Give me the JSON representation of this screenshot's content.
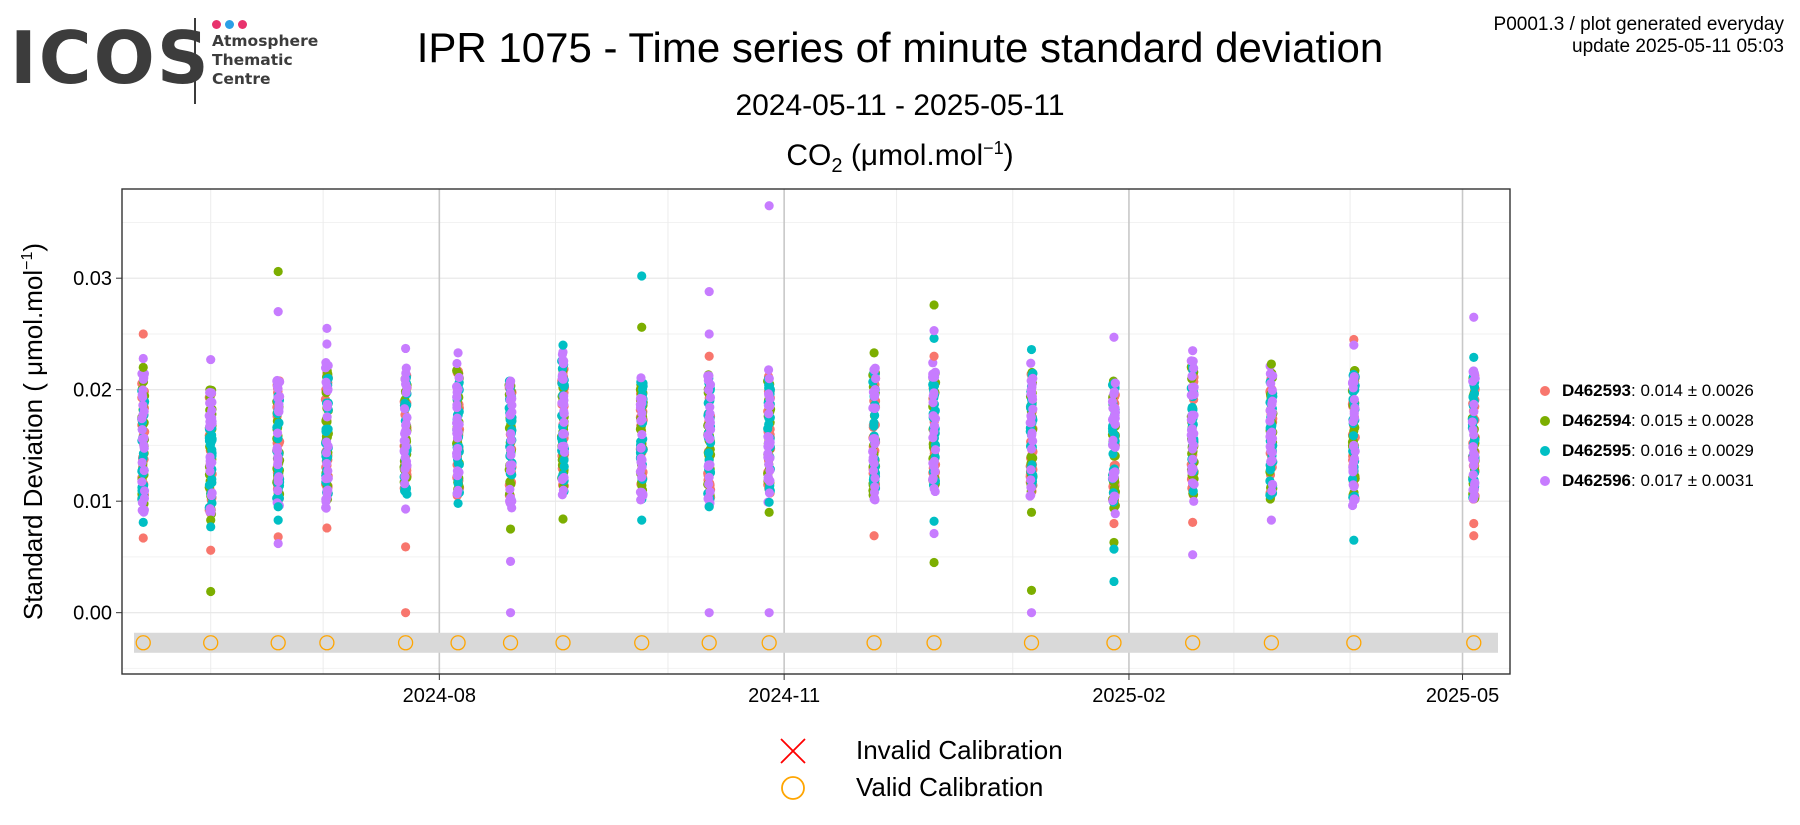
{
  "logo": {
    "word": "ICOS",
    "lines": [
      "Atmosphere",
      "Thematic",
      "Centre"
    ],
    "dot_colors": [
      "#e8336d",
      "#2b9fe6",
      "#e8336d"
    ]
  },
  "header": {
    "title": "IPR 1075 - Time series of minute standard deviation",
    "subtitle": "2024-05-11 - 2025-05-11",
    "plot_title_prefix": "CO",
    "plot_title_sub": "2",
    "plot_title_unit": " (μmol.mol",
    "plot_title_sup": "−1",
    "plot_title_close": ")",
    "info_line1": "P0001.3 / plot generated everyday",
    "info_line2": "update  2025-05-11 05:03"
  },
  "chart_data": {
    "type": "scatter",
    "title": "CO2 (μmol.mol−1)",
    "xlabel": "",
    "ylabel": "Standard Deviation ( μmol.mol−1)",
    "xlim": [
      "2024-05-11",
      "2025-05-11"
    ],
    "ylim": [
      -0.0055,
      0.038
    ],
    "y_ticks": [
      0.0,
      0.01,
      0.02,
      0.03
    ],
    "y_tick_labels": [
      "0.00",
      "0.01",
      "0.02",
      "0.03"
    ],
    "x_ticks": [
      "2024-08-01",
      "2024-11-01",
      "2025-02-01",
      "2025-05-01"
    ],
    "x_tick_labels": [
      "2024-08",
      "2024-11",
      "2025-02",
      "2025-05"
    ],
    "grid": true,
    "legend_position": "right",
    "calibration_dates": [
      "2024-05-14",
      "2024-06-01",
      "2024-06-19",
      "2024-07-02",
      "2024-07-23",
      "2024-08-06",
      "2024-08-20",
      "2024-09-03",
      "2024-09-24",
      "2024-10-12",
      "2024-10-28",
      "2024-11-25",
      "2024-12-11",
      "2025-01-06",
      "2025-01-28",
      "2025-02-18",
      "2025-03-11",
      "2025-04-02",
      "2025-05-04"
    ],
    "calibration_y": -0.0027,
    "series": [
      {
        "name": "D462593",
        "color": "#f8766d",
        "legend_value": ": 0.014 ± 0.0026",
        "points": [
          [
            "2024-05-14",
            0.025
          ],
          [
            "2024-05-14",
            0.0067
          ],
          [
            "2024-06-01",
            0.0056
          ],
          [
            "2024-06-19",
            0.0068
          ],
          [
            "2024-07-02",
            0.0076
          ],
          [
            "2024-07-23",
            0.0059
          ],
          [
            "2024-07-23",
            0.0
          ],
          [
            "2024-10-12",
            0.023
          ],
          [
            "2024-11-25",
            0.0069
          ],
          [
            "2024-12-11",
            0.023
          ],
          [
            "2025-01-28",
            0.008
          ],
          [
            "2025-02-18",
            0.0081
          ],
          [
            "2025-04-02",
            0.0245
          ],
          [
            "2025-05-04",
            0.008
          ],
          [
            "2025-05-04",
            0.0069
          ]
        ]
      },
      {
        "name": "D462594",
        "color": "#7cae00",
        "legend_value": ": 0.015 ± 0.0028",
        "points": [
          [
            "2024-05-14",
            0.022
          ],
          [
            "2024-06-01",
            0.0019
          ],
          [
            "2024-06-01",
            0.0083
          ],
          [
            "2024-06-19",
            0.0306
          ],
          [
            "2024-08-20",
            0.0075
          ],
          [
            "2024-09-03",
            0.0084
          ],
          [
            "2024-09-24",
            0.0256
          ],
          [
            "2024-10-28",
            0.009
          ],
          [
            "2024-11-25",
            0.0233
          ],
          [
            "2024-12-11",
            0.0276
          ],
          [
            "2024-12-11",
            0.0045
          ],
          [
            "2025-01-06",
            0.002
          ],
          [
            "2025-01-06",
            0.009
          ],
          [
            "2025-01-28",
            0.0063
          ],
          [
            "2025-03-11",
            0.0223
          ]
        ]
      },
      {
        "name": "D462595",
        "color": "#00bfc4",
        "legend_value": ": 0.016 ± 0.0029",
        "points": [
          [
            "2024-05-14",
            0.0081
          ],
          [
            "2024-06-01",
            0.0077
          ],
          [
            "2024-06-19",
            0.0083
          ],
          [
            "2024-06-19",
            0.0095
          ],
          [
            "2024-08-06",
            0.0098
          ],
          [
            "2024-09-03",
            0.024
          ],
          [
            "2024-09-24",
            0.0302
          ],
          [
            "2024-09-24",
            0.0083
          ],
          [
            "2024-10-12",
            0.0095
          ],
          [
            "2024-10-28",
            0.0099
          ],
          [
            "2024-12-11",
            0.0246
          ],
          [
            "2024-12-11",
            0.0082
          ],
          [
            "2025-01-06",
            0.0236
          ],
          [
            "2025-01-28",
            0.0057
          ],
          [
            "2025-01-28",
            0.0028
          ],
          [
            "2025-04-02",
            0.0065
          ],
          [
            "2025-05-04",
            0.0229
          ]
        ]
      },
      {
        "name": "D462596",
        "color": "#c77cff",
        "legend_value": ": 0.017 ± 0.0031",
        "points": [
          [
            "2024-05-14",
            0.0228
          ],
          [
            "2024-06-01",
            0.0227
          ],
          [
            "2024-06-19",
            0.027
          ],
          [
            "2024-06-19",
            0.0062
          ],
          [
            "2024-07-02",
            0.0255
          ],
          [
            "2024-07-02",
            0.0241
          ],
          [
            "2024-07-23",
            0.0237
          ],
          [
            "2024-07-23",
            0.0093
          ],
          [
            "2024-08-06",
            0.0233
          ],
          [
            "2024-08-20",
            0.0046
          ],
          [
            "2024-08-20",
            0.0
          ],
          [
            "2024-10-12",
            0.0288
          ],
          [
            "2024-10-12",
            0.025
          ],
          [
            "2024-10-12",
            0.0
          ],
          [
            "2024-10-28",
            0.0365
          ],
          [
            "2024-10-28",
            0.0
          ],
          [
            "2024-12-11",
            0.0253
          ],
          [
            "2024-12-11",
            0.0071
          ],
          [
            "2025-01-06",
            0.0
          ],
          [
            "2025-01-28",
            0.0247
          ],
          [
            "2025-02-18",
            0.0235
          ],
          [
            "2025-02-18",
            0.0052
          ],
          [
            "2025-03-11",
            0.0083
          ],
          [
            "2025-04-02",
            0.024
          ],
          [
            "2025-05-04",
            0.0265
          ]
        ]
      }
    ],
    "band_ranges": [
      {
        "date": "2024-05-14",
        "low": 0.0085,
        "high": 0.0215
      },
      {
        "date": "2024-06-01",
        "low": 0.0082,
        "high": 0.021
      },
      {
        "date": "2024-06-19",
        "low": 0.0096,
        "high": 0.0215
      },
      {
        "date": "2024-07-02",
        "low": 0.009,
        "high": 0.0225
      },
      {
        "date": "2024-07-23",
        "low": 0.01,
        "high": 0.022
      },
      {
        "date": "2024-08-06",
        "low": 0.0098,
        "high": 0.0225
      },
      {
        "date": "2024-08-20",
        "low": 0.0092,
        "high": 0.0215
      },
      {
        "date": "2024-09-03",
        "low": 0.0102,
        "high": 0.0238
      },
      {
        "date": "2024-09-24",
        "low": 0.0095,
        "high": 0.0218
      },
      {
        "date": "2024-10-12",
        "low": 0.0095,
        "high": 0.022
      },
      {
        "date": "2024-10-28",
        "low": 0.0099,
        "high": 0.0218
      },
      {
        "date": "2024-11-25",
        "low": 0.0098,
        "high": 0.0222
      },
      {
        "date": "2024-12-11",
        "low": 0.0105,
        "high": 0.0225
      },
      {
        "date": "2025-01-06",
        "low": 0.0102,
        "high": 0.0225
      },
      {
        "date": "2025-01-28",
        "low": 0.0085,
        "high": 0.0215
      },
      {
        "date": "2025-02-18",
        "low": 0.0098,
        "high": 0.0228
      },
      {
        "date": "2025-03-11",
        "low": 0.0095,
        "high": 0.0222
      },
      {
        "date": "2025-04-02",
        "low": 0.0095,
        "high": 0.0225
      },
      {
        "date": "2025-05-04",
        "low": 0.0095,
        "high": 0.022
      }
    ]
  },
  "legend": {
    "items": [
      {
        "name": "D462593",
        "value": ": 0.014 ± 0.0026",
        "color": "#f8766d"
      },
      {
        "name": "D462594",
        "value": ": 0.015 ± 0.0028",
        "color": "#7cae00"
      },
      {
        "name": "D462595",
        "value": ": 0.016 ± 0.0029",
        "color": "#00bfc4"
      },
      {
        "name": "D462596",
        "value": ": 0.017 ± 0.0031",
        "color": "#c77cff"
      }
    ]
  },
  "calibration_legend": {
    "invalid_label": "Invalid Calibration",
    "valid_label": "Valid Calibration",
    "invalid_color": "#ff0000",
    "valid_color": "#ffa500"
  }
}
